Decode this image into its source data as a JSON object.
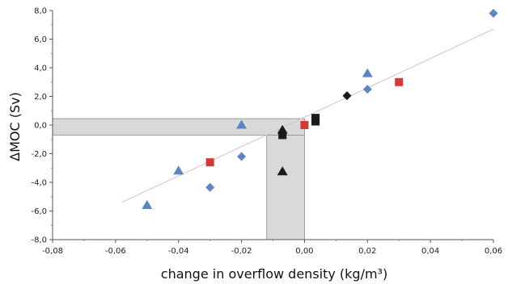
{
  "chart_data": {
    "type": "scatter",
    "xlabel": "change in overflow density (kg/m³)",
    "ylabel": "ΔMOC (Sv)",
    "xlim": [
      -0.08,
      0.06
    ],
    "ylim": [
      -8.0,
      8.0
    ],
    "x_ticks": [
      "-0,08",
      "-0,06",
      "-0,04",
      "-0,02",
      "0,00",
      "0,02",
      "0,04",
      "0,06"
    ],
    "y_ticks": [
      "8,0",
      "6,0",
      "4,0",
      "2,0",
      "0,0",
      "-2,0",
      "-4,0",
      "-6,0",
      "-8,0"
    ],
    "grid": false,
    "colors": {
      "blue": "#5b86c4",
      "red": "#d33a36",
      "black": "#1a1a1a",
      "shade": "#d9d9d9",
      "fit_line": "#d8c0c4"
    },
    "fit_line": {
      "x": [
        -0.058,
        0.06
      ],
      "y": [
        -5.4,
        6.7
      ]
    },
    "shaded_regions": [
      {
        "x": [
          -0.08,
          0.0
        ],
        "y": [
          -0.7,
          0.45
        ]
      },
      {
        "x": [
          -0.012,
          0.0
        ],
        "y": [
          -8.0,
          -0.7
        ]
      }
    ],
    "points": [
      {
        "x": -0.05,
        "y": -5.6,
        "shape": "triangle",
        "color": "blue"
      },
      {
        "x": -0.04,
        "y": -3.2,
        "shape": "triangle",
        "color": "blue"
      },
      {
        "x": -0.02,
        "y": 0.0,
        "shape": "triangle",
        "color": "blue"
      },
      {
        "x": 0.02,
        "y": 3.6,
        "shape": "triangle",
        "color": "blue"
      },
      {
        "x": -0.03,
        "y": -4.35,
        "shape": "diamond",
        "color": "blue"
      },
      {
        "x": -0.02,
        "y": -2.2,
        "shape": "diamond",
        "color": "blue"
      },
      {
        "x": 0.02,
        "y": 2.5,
        "shape": "diamond",
        "color": "blue"
      },
      {
        "x": 0.06,
        "y": 7.8,
        "shape": "diamond",
        "color": "blue"
      },
      {
        "x": -0.03,
        "y": -2.6,
        "shape": "square",
        "color": "red"
      },
      {
        "x": 0.0,
        "y": 0.0,
        "shape": "square",
        "color": "red"
      },
      {
        "x": 0.03,
        "y": 3.0,
        "shape": "square",
        "color": "red"
      },
      {
        "x": -0.007,
        "y": -3.25,
        "shape": "triangle",
        "color": "black"
      },
      {
        "x": -0.007,
        "y": -0.35,
        "shape": "triangle",
        "color": "black"
      },
      {
        "x": -0.007,
        "y": -0.7,
        "shape": "square",
        "color": "black"
      },
      {
        "x": 0.0035,
        "y": 0.25,
        "shape": "square",
        "color": "black"
      },
      {
        "x": 0.0035,
        "y": 0.5,
        "shape": "square",
        "color": "black"
      },
      {
        "x": 0.0135,
        "y": 2.05,
        "shape": "diamond",
        "color": "black"
      }
    ]
  }
}
